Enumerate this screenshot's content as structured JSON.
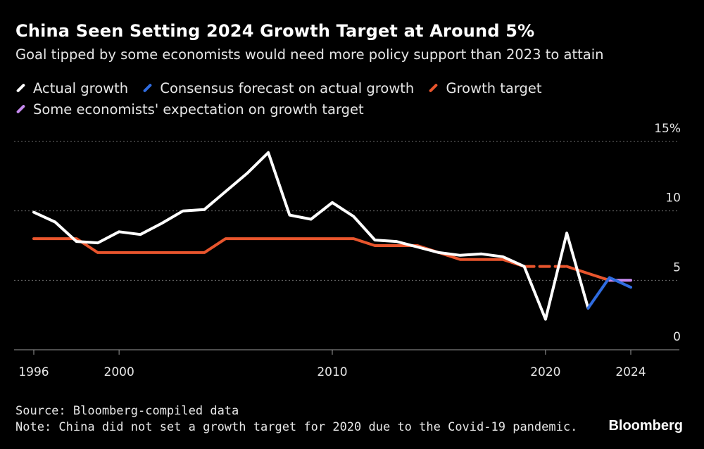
{
  "chart_data": {
    "type": "line",
    "title": "China Seen Setting 2024 Growth Target at Around 5%",
    "subtitle": "Goal tipped by some economists would need more policy support than 2023 to attain",
    "xlim": [
      1996,
      2026
    ],
    "ylim": [
      0,
      15
    ],
    "x_ticks": [
      {
        "value": 1996,
        "label": "1996"
      },
      {
        "value": 2000,
        "label": "2000"
      },
      {
        "value": 2010,
        "label": "2010"
      },
      {
        "value": 2020,
        "label": "2020"
      },
      {
        "value": 2024,
        "label": "2024"
      }
    ],
    "y_ticks": [
      {
        "value": 15,
        "label": "15%"
      },
      {
        "value": 10,
        "label": "10"
      },
      {
        "value": 5,
        "label": "5"
      },
      {
        "value": 0,
        "label": "0"
      }
    ],
    "grid": "horizontal dotted",
    "legend_position": "top-left",
    "series": [
      {
        "name": "Actual growth",
        "color": "#ffffff",
        "x": [
          1996,
          1997,
          1998,
          1999,
          2000,
          2001,
          2002,
          2003,
          2004,
          2005,
          2006,
          2007,
          2008,
          2009,
          2010,
          2011,
          2012,
          2013,
          2014,
          2015,
          2016,
          2017,
          2018,
          2019,
          2020,
          2021,
          2022
        ],
        "y": [
          9.9,
          9.2,
          7.8,
          7.7,
          8.5,
          8.3,
          9.1,
          10.0,
          10.1,
          11.4,
          12.7,
          14.2,
          9.7,
          9.4,
          10.6,
          9.6,
          7.9,
          7.8,
          7.4,
          7.0,
          6.8,
          6.9,
          6.7,
          6.0,
          2.2,
          8.4,
          3.0
        ]
      },
      {
        "name": "Consensus forecast on actual growth",
        "color": "#2f6ce0",
        "x": [
          2022,
          2023,
          2024
        ],
        "y": [
          3.0,
          5.2,
          4.5
        ]
      },
      {
        "name": "Growth target",
        "color": "#e8552d",
        "x": [
          1996,
          1997,
          1998,
          1999,
          2000,
          2001,
          2002,
          2003,
          2004,
          2005,
          2006,
          2007,
          2008,
          2009,
          2010,
          2011,
          2012,
          2013,
          2014,
          2015,
          2016,
          2017,
          2018,
          2019
        ],
        "y": [
          8.0,
          8.0,
          8.0,
          7.0,
          7.0,
          7.0,
          7.0,
          7.0,
          7.0,
          8.0,
          8.0,
          8.0,
          8.0,
          8.0,
          8.0,
          8.0,
          7.5,
          7.5,
          7.5,
          7.0,
          6.5,
          6.5,
          6.5,
          6.0
        ],
        "gap_segment": {
          "x": [
            2019,
            2020,
            2021
          ],
          "y": [
            6.0,
            6.0,
            6.0
          ],
          "style": "dashed"
        },
        "continuation": {
          "x": [
            2021,
            2022,
            2023
          ],
          "y": [
            6.0,
            5.5,
            5.0
          ]
        }
      },
      {
        "name": "Some economists' expectation on growth target",
        "color": "#c78bf0",
        "x": [
          2023,
          2024
        ],
        "y": [
          5.0,
          5.0
        ]
      }
    ]
  },
  "footer": {
    "source": "Source: Bloomberg-compiled data",
    "note": "Note: China did not set a growth target for 2020 due to the Covid-19 pandemic."
  },
  "brand": "Bloomberg",
  "colors": {
    "background": "#000000",
    "text": "#ffffff",
    "grid": "#6b6b6b"
  }
}
